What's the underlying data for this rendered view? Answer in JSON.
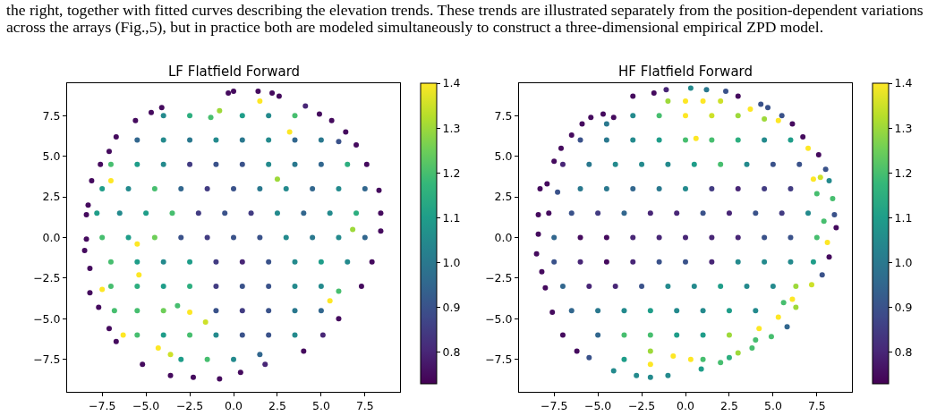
{
  "chart_data": [
    {
      "type": "scatter",
      "title": "LF Flatfield Forward",
      "annotations": [
        "the right, together with fitted curves describing the elevation trends. These trends are illustrated separately from the position-dependent variations",
        "across the arrays (Fig.,5), but in practice both are modeled simultaneously to construct a three-dimensional empirical ZPD model."
      ],
      "x": [
        -0.3,
        0,
        1.4,
        2.2,
        2.6,
        -4.1,
        -4.7,
        -5.6,
        -6.7,
        -7.1,
        -7.6,
        -8.1,
        -8.3,
        -8.4,
        -8.4,
        -8.5,
        -8.2,
        -8.2,
        -7.7,
        -7.1,
        -6.7,
        -5.2,
        -3.6,
        -2.3,
        -0.8,
        0.4,
        1.8,
        4.0,
        5.1,
        6.0,
        7.3,
        7.9,
        8.4,
        8.4,
        8.3,
        7.6,
        7.0,
        6.4,
        5.6,
        4.9,
        4.1,
        1.5,
        3.2,
        -7.0,
        -5.5,
        -5.4,
        -7.5,
        -2.5,
        -1.6,
        -6.3,
        -4.3,
        -3.6,
        5.5,
        2.5,
        -0.8,
        -4,
        -2.5,
        -1.3,
        0.5,
        2,
        3.5,
        -5.5,
        -4,
        -2.5,
        -1,
        0.5,
        2,
        3.5,
        5,
        6.0,
        -7,
        -5.5,
        -4,
        -2.5,
        -1,
        0.5,
        2,
        3.5,
        5,
        6.5,
        -7.5,
        -6,
        -4.5,
        -3,
        -1.5,
        0,
        1.5,
        3,
        4.5,
        6,
        7.5,
        -7.8,
        -6.5,
        -5,
        -3.5,
        -2,
        -0.5,
        1,
        2.5,
        4,
        5.5,
        7,
        -7.5,
        -6,
        -4.5,
        -3,
        -1.5,
        0,
        1.5,
        3,
        4.5,
        6,
        6.8,
        7.5,
        -7,
        -5.5,
        -4,
        -2.5,
        -1,
        0.5,
        2,
        3.5,
        5,
        6.5,
        -7,
        -5.5,
        -4,
        -2.5,
        -1,
        0.5,
        2,
        3.5,
        5,
        6,
        -6.8,
        -5.5,
        -4,
        -3.2,
        -1,
        0.5,
        2,
        3.5,
        5,
        -5.5,
        -4,
        -2.5,
        -1,
        0.5,
        2,
        3.5,
        -3,
        -1.5,
        0,
        1.5
      ],
      "values": [
        8.9,
        9.0,
        9.0,
        8.9,
        8.7,
        8.0,
        7.7,
        7.2,
        6.2,
        5.3,
        4.5,
        3.5,
        2.0,
        1.4,
        -0.1,
        -0.8,
        -1.9,
        -3.4,
        -4.3,
        -5.6,
        -6.4,
        -7.8,
        -8.5,
        -8.6,
        -8.7,
        -8.3,
        -7.8,
        -7.0,
        -6.0,
        -5.0,
        -3.0,
        -1.5,
        0.4,
        1.5,
        2.9,
        4.5,
        5.7,
        6.5,
        7.2,
        7.6,
        8.1,
        8.4,
        6.5,
        3.5,
        -0.4,
        -2.3,
        -3.2,
        -4.6,
        -5.2,
        -6.0,
        -6.8,
        -7.2,
        -3.9,
        3.6,
        7.8,
        7.5,
        7.5,
        7.4,
        7.5,
        7.5,
        7.5,
        6,
        6,
        6,
        6,
        6,
        6,
        6,
        6,
        5.9,
        4.5,
        4.5,
        4.5,
        4.5,
        4.5,
        4.5,
        4.5,
        4.5,
        4.5,
        4.5,
        3,
        3,
        3,
        3,
        3,
        3,
        3,
        3,
        3,
        3,
        3,
        1.5,
        1.5,
        1.5,
        1.5,
        1.5,
        1.5,
        1.5,
        1.5,
        1.5,
        1.5,
        1.5,
        0,
        0,
        0,
        0,
        0,
        0,
        0,
        0,
        0,
        0,
        0.5,
        0,
        -1.5,
        -1.5,
        -1.5,
        -1.5,
        -1.5,
        -1.5,
        -1.5,
        -1.5,
        -1.5,
        -1.5,
        -3,
        -3,
        -3,
        -3,
        -3,
        -3,
        -3,
        -3,
        -3,
        -3.3,
        -4.5,
        -4.5,
        -4.5,
        -4.2,
        -4.5,
        -4.5,
        -4.5,
        -4.5,
        -4.5,
        -6,
        -6,
        -6,
        -6,
        -6,
        -6,
        -6,
        -7.5,
        -7.5,
        -7.5,
        -7.2
      ],
      "cvalues": [
        0.75,
        0.75,
        0.75,
        0.75,
        0.75,
        0.75,
        0.75,
        0.75,
        0.75,
        0.75,
        0.75,
        0.75,
        0.75,
        0.75,
        0.75,
        0.75,
        0.75,
        0.75,
        0.75,
        0.75,
        0.75,
        0.75,
        0.75,
        0.75,
        0.75,
        0.75,
        0.8,
        0.75,
        0.8,
        0.75,
        0.75,
        0.75,
        0.75,
        0.75,
        0.75,
        0.75,
        0.75,
        0.75,
        0.75,
        0.75,
        0.8,
        1.4,
        1.4,
        1.4,
        1.4,
        1.4,
        1.4,
        1.4,
        1.35,
        1.4,
        1.4,
        1.35,
        1.4,
        1.3,
        1.3,
        1.05,
        1.15,
        1.2,
        1.1,
        1.05,
        1.2,
        0.95,
        1.05,
        1.0,
        1.05,
        1.0,
        1.05,
        0.95,
        1.0,
        0.9,
        1.2,
        1.1,
        1.05,
        0.85,
        0.9,
        0.9,
        1.05,
        1.0,
        0.95,
        1.15,
        1.1,
        1.05,
        1.2,
        0.95,
        0.85,
        0.9,
        1.0,
        1.05,
        0.95,
        1.05,
        0.95,
        1.1,
        1.05,
        1.1,
        1.2,
        0.85,
        0.9,
        0.85,
        1.05,
        0.95,
        1.05,
        1.15,
        1.2,
        1.1,
        1.25,
        0.9,
        0.85,
        0.9,
        0.9,
        1.05,
        1.0,
        1.05,
        1.3,
        0.95,
        1.2,
        1.1,
        1.05,
        1.1,
        0.85,
        0.8,
        0.9,
        1.05,
        1.1,
        1.05,
        1.2,
        1.15,
        1.1,
        1.15,
        0.85,
        0.9,
        0.9,
        1.05,
        1.05,
        1.2,
        1.2,
        1.2,
        1.25,
        1.2,
        0.9,
        0.85,
        0.9,
        1.0,
        0.95,
        1.2,
        1.1,
        1.2,
        1.05,
        0.9,
        0.9,
        1.05,
        1.1,
        1.2,
        1.05,
        0.95
      ],
      "clim": [
        0.73,
        1.4
      ],
      "cticks": [
        {
          "value": 0.8,
          "label": "0.8"
        },
        {
          "value": 0.9,
          "label": "0.9"
        },
        {
          "value": 1,
          "label": "1.0"
        },
        {
          "value": 1.1,
          "label": "1.1"
        },
        {
          "value": 1.2,
          "label": "1.2"
        },
        {
          "value": 1.3,
          "label": "1.3"
        },
        {
          "value": 1.4,
          "label": "1.4"
        }
      ],
      "xlim": [
        -9.5,
        9.5
      ],
      "ylim": [
        -9.5,
        9.5
      ],
      "xticks": [
        {
          "value": -7.5,
          "label": "−7.5"
        },
        {
          "value": -5,
          "label": "−5.0"
        },
        {
          "value": -2.5,
          "label": "−2.5"
        },
        {
          "value": 0,
          "label": "0.0"
        },
        {
          "value": 2.5,
          "label": "2.5"
        },
        {
          "value": 5,
          "label": "5.0"
        },
        {
          "value": 7.5,
          "label": "7.5"
        }
      ],
      "yticks": [
        {
          "value": -7.5,
          "label": "−7.5"
        },
        {
          "value": -5,
          "label": "−5.0"
        },
        {
          "value": -2.5,
          "label": "−2.5"
        },
        {
          "value": 0,
          "label": "0.0"
        },
        {
          "value": 2.5,
          "label": "2.5"
        },
        {
          "value": 5,
          "label": "5.0"
        },
        {
          "value": 7.5,
          "label": "7.5"
        }
      ],
      "marker": "circle"
    },
    {
      "type": "scatter",
      "title": "HF Flatfield Forward",
      "x": [
        -1.1,
        -1.8,
        0.3,
        1.2,
        2.3,
        3.0,
        -3.0,
        -4.1,
        -4.7,
        -5.4,
        -5.9,
        -6.5,
        -7.1,
        -7.5,
        -7.9,
        -8.3,
        -8.4,
        -8.4,
        -8.5,
        -8.2,
        -8.0,
        -7.6,
        -7.0,
        -6.2,
        -5.5,
        -4.1,
        -2.8,
        -2.0,
        -1.0,
        0.9,
        2.0,
        3.0,
        3.8,
        4.9,
        5.8,
        6.3,
        7.2,
        7.8,
        8.2,
        8.6,
        8.5,
        8.4,
        8.2,
        8.0,
        7.6,
        7.0,
        6.7,
        6.1,
        5.5,
        4.7,
        4.3,
        0.6,
        7.3,
        7.7,
        8.1,
        6.1,
        5.3,
        4.2,
        0.3,
        -0.7,
        -2.0,
        5.3,
        3.7,
        -1,
        0,
        1,
        2,
        -4.5,
        -3,
        -1.5,
        0,
        1.5,
        3,
        4.5,
        -6,
        -4.5,
        -3,
        -1.5,
        0,
        1.5,
        3,
        4.5,
        6,
        -7,
        -5.5,
        -4,
        -2.5,
        -1,
        0.5,
        2,
        3.5,
        5,
        6.5,
        -7.3,
        -6,
        -4.5,
        -3,
        -1.5,
        0,
        1.5,
        3,
        4.5,
        6,
        7.5,
        -7.8,
        -6.5,
        -5,
        -3.5,
        -2,
        -0.5,
        1,
        2.5,
        4,
        5.5,
        7,
        7.9,
        -7.5,
        -6,
        -4.5,
        -3,
        -1.5,
        0,
        1.5,
        3,
        4.5,
        6,
        7.5,
        -7.5,
        -6,
        -4.5,
        -3,
        -1.5,
        0,
        1.5,
        3,
        4.5,
        6,
        7.3,
        -7,
        -5.5,
        -4,
        -2.5,
        -1,
        0.5,
        2,
        3.5,
        5,
        6.3,
        -6.5,
        -5,
        -3.5,
        -2,
        -0.5,
        1,
        2.5,
        4,
        5.6,
        -5,
        -3.5,
        -2,
        -0.5,
        1,
        2.5,
        4.0,
        -3.5,
        -2.0,
        1,
        2.5
      ],
      "values": [
        9.1,
        8.9,
        9.2,
        9.1,
        9.0,
        8.7,
        8.7,
        7.4,
        7.6,
        7.4,
        7.0,
        6.3,
        5.5,
        4.7,
        3.3,
        3.0,
        1.4,
        0.2,
        -1.0,
        -2.1,
        -3.1,
        -4.6,
        -6.0,
        -7.0,
        -7.4,
        -8.2,
        -8.5,
        -8.6,
        -8.5,
        -8.1,
        -7.7,
        -7.1,
        -6.8,
        -6.1,
        -5.5,
        -4.3,
        -2.9,
        -2.3,
        -1.2,
        0.6,
        1.4,
        2.4,
        3.5,
        4.2,
        5.1,
        5.5,
        6.2,
        7.0,
        7.5,
        8.0,
        8.2,
        6.1,
        3.6,
        3.7,
        -0.3,
        -3.8,
        -4.9,
        -5.6,
        -7.5,
        -7.3,
        -7.8,
        7.2,
        7.9,
        8.4,
        8.4,
        8.4,
        8.4,
        7.0,
        7.5,
        7.5,
        7.5,
        7.5,
        7.5,
        7.3,
        6,
        6,
        6,
        6,
        6,
        6,
        6,
        6,
        6,
        4.5,
        4.5,
        4.5,
        4.5,
        4.5,
        4.5,
        4.5,
        4.5,
        4.5,
        4.5,
        2.8,
        3,
        3,
        3,
        3,
        3,
        3,
        3,
        3,
        3,
        2.7,
        1.5,
        1.5,
        1.5,
        1.5,
        1.5,
        1.5,
        1.5,
        1.5,
        1.5,
        1.5,
        1.5,
        1.0,
        0,
        0,
        0,
        0,
        0,
        0,
        0,
        0,
        0,
        0,
        0,
        -1.5,
        -1.5,
        -1.5,
        -1.5,
        -1.5,
        -1.5,
        -1.5,
        -1.5,
        -1.5,
        -1.5,
        -1.5,
        -3,
        -3,
        -3,
        -3,
        -3,
        -3,
        -3,
        -3,
        -3,
        -3,
        -4.5,
        -4.5,
        -4.5,
        -4.5,
        -4.5,
        -4.5,
        -4.5,
        -4.5,
        -4.0,
        -6,
        -6,
        -6,
        -6,
        -6,
        -6,
        -6.3,
        -7.5,
        -7.0,
        -7.5,
        -7.4
      ],
      "cvalues": [
        0.8,
        0.75,
        1.05,
        1.0,
        0.9,
        0.75,
        0.75,
        0.75,
        0.75,
        0.75,
        0.75,
        0.75,
        0.75,
        0.75,
        0.75,
        0.75,
        0.75,
        0.75,
        0.75,
        0.75,
        0.75,
        0.75,
        0.75,
        0.75,
        0.9,
        1.05,
        1.05,
        1.05,
        1.05,
        1.1,
        1.2,
        1.3,
        1.2,
        1.2,
        0.95,
        1.3,
        1.35,
        0.9,
        0.75,
        0.75,
        0.9,
        1.2,
        1.05,
        0.9,
        0.75,
        1.4,
        0.75,
        0.75,
        0.9,
        0.9,
        0.9,
        1.4,
        1.4,
        1.35,
        1.4,
        1.4,
        1.4,
        1.4,
        1.4,
        1.4,
        1.4,
        1.4,
        1.4,
        1.3,
        1.4,
        1.4,
        1.35,
        1.0,
        1.05,
        1.2,
        1.4,
        1.35,
        1.3,
        1.3,
        0.9,
        1.0,
        1.05,
        1.1,
        1.2,
        1.2,
        1.15,
        1.05,
        1.1,
        0.8,
        1.0,
        1.05,
        1.05,
        1.05,
        1.1,
        1.2,
        1.05,
        0.9,
        0.9,
        0.9,
        1.0,
        1.0,
        0.95,
        1.0,
        1.05,
        0.85,
        0.8,
        0.85,
        0.85,
        1.2,
        0.75,
        0.9,
        0.85,
        0.95,
        0.8,
        0.8,
        0.9,
        0.8,
        0.9,
        0.85,
        1.05,
        1.2,
        0.95,
        0.75,
        0.75,
        0.8,
        0.8,
        0.8,
        0.8,
        0.8,
        0.9,
        0.9,
        1.2,
        0.9,
        0.8,
        0.75,
        0.8,
        0.9,
        0.9,
        0.8,
        1.05,
        1.05,
        1.05,
        1.1,
        0.95,
        0.8,
        0.8,
        0.9,
        1.05,
        1.05,
        1.1,
        1.05,
        1.05,
        1.3,
        0.95,
        1.0,
        1.05,
        1.1,
        1.05,
        1.05,
        1.1,
        1.05,
        1.2,
        0.95,
        1.2,
        1.2,
        1.1,
        1.1,
        1.3,
        1.2,
        1.1,
        1.3,
        1.2,
        1.15
      ],
      "clim": [
        0.73,
        1.4
      ],
      "cticks": [
        {
          "value": 0.8,
          "label": "0.8"
        },
        {
          "value": 0.9,
          "label": "0.9"
        },
        {
          "value": 1,
          "label": "1.0"
        },
        {
          "value": 1.1,
          "label": "1.1"
        },
        {
          "value": 1.2,
          "label": "1.2"
        },
        {
          "value": 1.3,
          "label": "1.3"
        },
        {
          "value": 1.4,
          "label": "1.4"
        }
      ],
      "xlim": [
        -9.5,
        9.5
      ],
      "ylim": [
        -9.5,
        9.5
      ],
      "xticks": [
        {
          "value": -7.5,
          "label": "−7.5"
        },
        {
          "value": -5,
          "label": "−5.0"
        },
        {
          "value": -2.5,
          "label": "−2.5"
        },
        {
          "value": 0,
          "label": "0.0"
        },
        {
          "value": 2.5,
          "label": "2.5"
        },
        {
          "value": 5,
          "label": "5.0"
        },
        {
          "value": 7.5,
          "label": "7.5"
        }
      ],
      "yticks": [
        {
          "value": -7.5,
          "label": "−7.5"
        },
        {
          "value": -5,
          "label": "−5.0"
        },
        {
          "value": -2.5,
          "label": "−2.5"
        },
        {
          "value": 0,
          "label": "0.0"
        },
        {
          "value": 2.5,
          "label": "2.5"
        },
        {
          "value": 5,
          "label": "5.0"
        },
        {
          "value": 7.5,
          "label": "7.5"
        }
      ],
      "marker": "circle"
    }
  ]
}
